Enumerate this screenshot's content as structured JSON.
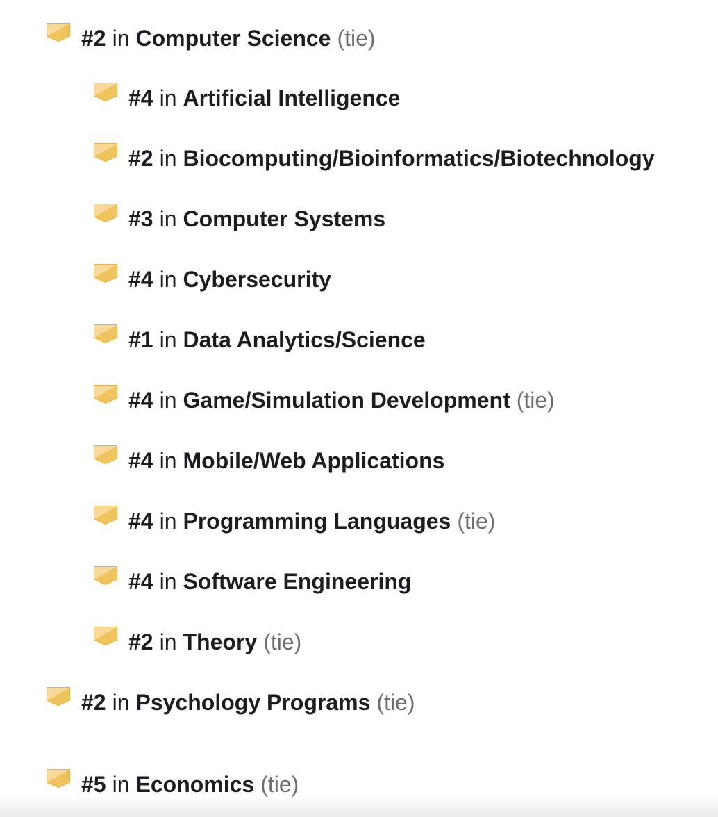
{
  "badge_colors": {
    "light": "#f8d99a",
    "dark": "#efc45c",
    "edge": "#e2b24a"
  },
  "connector": "in",
  "rankings": [
    {
      "rank": "#2",
      "category": "Computer Science",
      "tie": "(tie)",
      "level": "top"
    },
    {
      "rank": "#4",
      "category": "Artificial Intelligence",
      "tie": "",
      "level": "sub"
    },
    {
      "rank": "#2",
      "category": "Biocomputing/Bioinformatics/Biotechnology",
      "tie": "",
      "level": "sub"
    },
    {
      "rank": "#3",
      "category": "Computer Systems",
      "tie": "",
      "level": "sub"
    },
    {
      "rank": "#4",
      "category": "Cybersecurity",
      "tie": "",
      "level": "sub"
    },
    {
      "rank": "#1",
      "category": "Data Analytics/Science",
      "tie": "",
      "level": "sub"
    },
    {
      "rank": "#4",
      "category": "Game/Simulation Development",
      "tie": "(tie)",
      "level": "sub"
    },
    {
      "rank": "#4",
      "category": "Mobile/Web Applications",
      "tie": "",
      "level": "sub"
    },
    {
      "rank": "#4",
      "category": "Programming Languages",
      "tie": "(tie)",
      "level": "sub"
    },
    {
      "rank": "#4",
      "category": "Software Engineering",
      "tie": "",
      "level": "sub"
    },
    {
      "rank": "#2",
      "category": "Theory",
      "tie": "(tie)",
      "level": "sub"
    },
    {
      "rank": "#2",
      "category": "Psychology Programs",
      "tie": "(tie)",
      "level": "top"
    },
    {
      "rank": "#5",
      "category": "Economics",
      "tie": "(tie)",
      "level": "top"
    }
  ]
}
